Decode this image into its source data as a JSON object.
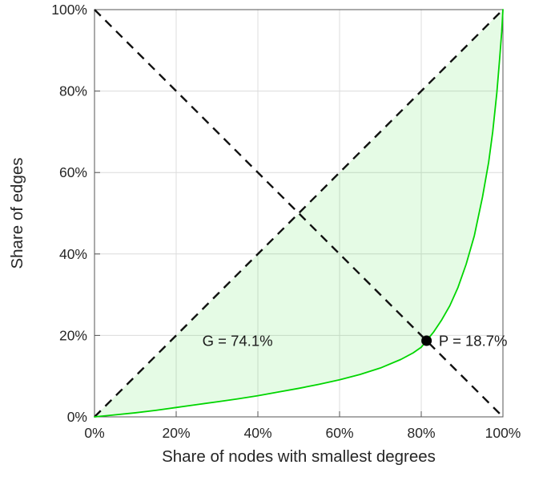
{
  "chart_data": {
    "type": "line",
    "title": "",
    "xlabel": "Share of nodes with smallest degrees",
    "ylabel": "Share of edges",
    "xlim": [
      0,
      100
    ],
    "ylim": [
      0,
      100
    ],
    "xticks": [
      0,
      20,
      40,
      60,
      80,
      100
    ],
    "yticks": [
      0,
      20,
      40,
      60,
      80,
      100
    ],
    "tick_suffix": "%",
    "grid": true,
    "grid_color": "#dcdcdc",
    "box_color": "#555555",
    "text_color": "#262626",
    "series": [
      {
        "name": "lorenz-curve",
        "color": "#00d500",
        "width": 1.8,
        "x": [
          0,
          2,
          5,
          10,
          15,
          20,
          25,
          30,
          35,
          40,
          45,
          50,
          55,
          60,
          65,
          70,
          75,
          78,
          80,
          81.3,
          83,
          85,
          87,
          89,
          91,
          93,
          95,
          96.5,
          97.5,
          98.5,
          99.2,
          99.7,
          100
        ],
        "y": [
          0,
          0.2,
          0.5,
          1.0,
          1.6,
          2.3,
          3.0,
          3.7,
          4.4,
          5.2,
          6.1,
          7.0,
          8.0,
          9.1,
          10.4,
          12.0,
          14.1,
          15.7,
          17.1,
          18.7,
          20.8,
          23.8,
          27.3,
          31.8,
          37.5,
          44.5,
          54.0,
          62.5,
          70.0,
          79.5,
          88.0,
          94.5,
          100
        ]
      }
    ],
    "fill": {
      "name": "gini-area",
      "between": [
        "equality-line",
        "lorenz-curve"
      ],
      "color": "rgba(0, 220, 0, 0.10)"
    },
    "reference_lines": [
      {
        "name": "equality-line",
        "x1": 0,
        "y1": 0,
        "x2": 100,
        "y2": 100,
        "color": "#111111",
        "dash": [
          11,
          8
        ],
        "width": 2.4
      },
      {
        "name": "anti-diagonal-line",
        "x1": 0,
        "y1": 100,
        "x2": 100,
        "y2": 0,
        "color": "#111111",
        "dash": [
          11,
          8
        ],
        "width": 2.4
      }
    ],
    "marker": {
      "name": "p-point",
      "x": 81.3,
      "y": 18.7,
      "radius": 6.5,
      "color": "#000000"
    },
    "annotations": [
      {
        "name": "gini-label",
        "text": "G = 74.1%",
        "x": 26.4,
        "y": 18.7,
        "anchor": "start"
      },
      {
        "name": "p-label",
        "text": "P = 18.7%",
        "x": 84.3,
        "y": 18.7,
        "anchor": "start"
      }
    ]
  }
}
